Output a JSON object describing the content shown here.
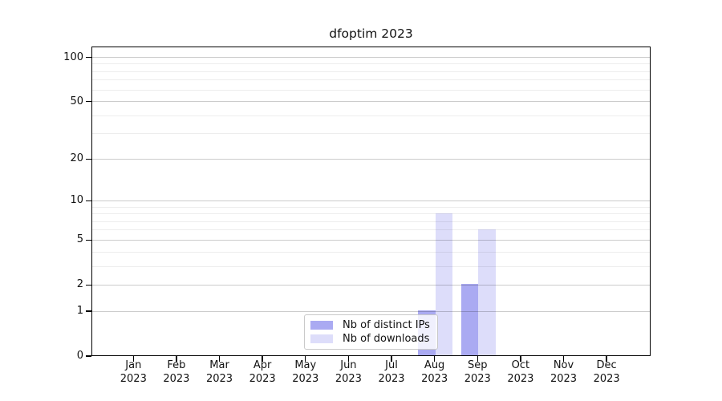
{
  "chart_data": {
    "type": "bar",
    "title": "dfoptim 2023",
    "x_tick_months": [
      "Jan",
      "Feb",
      "Mar",
      "Apr",
      "May",
      "Jun",
      "Jul",
      "Aug",
      "Sep",
      "Oct",
      "Nov",
      "Dec"
    ],
    "x_tick_year": "2023",
    "series": [
      {
        "name": "Nb of distinct IPs",
        "color": "rgba(85,85,230,0.50)",
        "values": [
          0,
          0,
          0,
          0,
          0,
          0,
          0,
          1,
          2,
          0,
          0,
          0
        ]
      },
      {
        "name": "Nb of downloads",
        "color": "rgba(85,85,230,0.20)",
        "values": [
          0,
          0,
          0,
          0,
          0,
          0,
          0,
          8,
          6,
          0,
          0,
          0
        ]
      }
    ],
    "y_axis": {
      "scale": "log1p",
      "major_ticks": [
        0,
        1,
        2,
        5,
        10,
        20,
        50,
        100
      ],
      "minor_gridlines": [
        3,
        4,
        6,
        7,
        8,
        9,
        30,
        40,
        60,
        70,
        80,
        90
      ],
      "ylim": [
        0,
        117
      ]
    },
    "legend": {
      "location": "lower center-right",
      "entries": [
        "Nb of distinct IPs",
        "Nb of downloads"
      ]
    },
    "colors": {
      "major_grid": "#cccccc",
      "minor_grid": "#ececec",
      "spine": "#000000",
      "background": "#ffffff"
    }
  }
}
